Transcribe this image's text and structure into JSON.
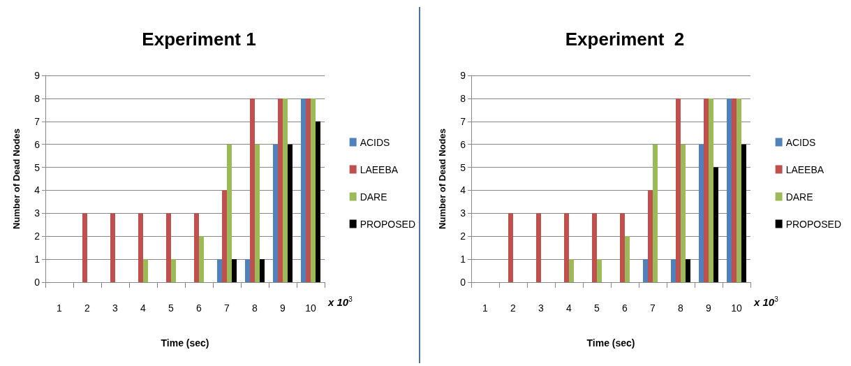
{
  "chart_data": [
    {
      "type": "bar",
      "title": "Experiment 1",
      "xlabel": "Time (sec)",
      "ylabel": "Number of Dead Nodes",
      "categories": [
        "1",
        "2",
        "3",
        "4",
        "5",
        "6",
        "7",
        "8",
        "9",
        "10"
      ],
      "ylim": [
        0,
        9
      ],
      "yticks": [
        0,
        1,
        2,
        3,
        4,
        5,
        6,
        7,
        8,
        9
      ],
      "grid": "y",
      "legend": "right",
      "annotations": [
        "x 10$^{3}$"
      ],
      "series": [
        {
          "name": "ACIDS",
          "color": "#4f81bd",
          "values": [
            0,
            0,
            0,
            0,
            0,
            0,
            1,
            1,
            6,
            8
          ]
        },
        {
          "name": "LAEEBA",
          "color": "#c0504d",
          "values": [
            0,
            3,
            3,
            3,
            3,
            3,
            4,
            8,
            8,
            8
          ]
        },
        {
          "name": "DARE",
          "color": "#9bbb59",
          "values": [
            0,
            0,
            0,
            1,
            1,
            2,
            6,
            6,
            8,
            8
          ]
        },
        {
          "name": "PROPOSED",
          "color": "#000000",
          "values": [
            0,
            0,
            0,
            0,
            0,
            0,
            1,
            1,
            6,
            7
          ]
        }
      ]
    },
    {
      "type": "bar",
      "title": "Experiment  2",
      "xlabel": "Time (sec)",
      "ylabel": "Number of Dead Nodes",
      "categories": [
        "1",
        "2",
        "3",
        "4",
        "5",
        "6",
        "7",
        "8",
        "9",
        "10"
      ],
      "ylim": [
        0,
        9
      ],
      "yticks": [
        0,
        1,
        2,
        3,
        4,
        5,
        6,
        7,
        8,
        9
      ],
      "grid": "y",
      "legend": "right",
      "annotations": [
        "x 10$^{3}$"
      ],
      "series": [
        {
          "name": "ACIDS",
          "color": "#4f81bd",
          "values": [
            0,
            0,
            0,
            0,
            0,
            0,
            1,
            1,
            6,
            8
          ]
        },
        {
          "name": "LAEEBA",
          "color": "#c0504d",
          "values": [
            0,
            3,
            3,
            3,
            3,
            3,
            4,
            8,
            8,
            8
          ]
        },
        {
          "name": "DARE",
          "color": "#9bbb59",
          "values": [
            0,
            0,
            0,
            1,
            1,
            2,
            6,
            6,
            8,
            8
          ]
        },
        {
          "name": "PROPOSED",
          "color": "#000000",
          "values": [
            0,
            0,
            0,
            0,
            0,
            0,
            0,
            1,
            5,
            6
          ]
        }
      ]
    }
  ]
}
